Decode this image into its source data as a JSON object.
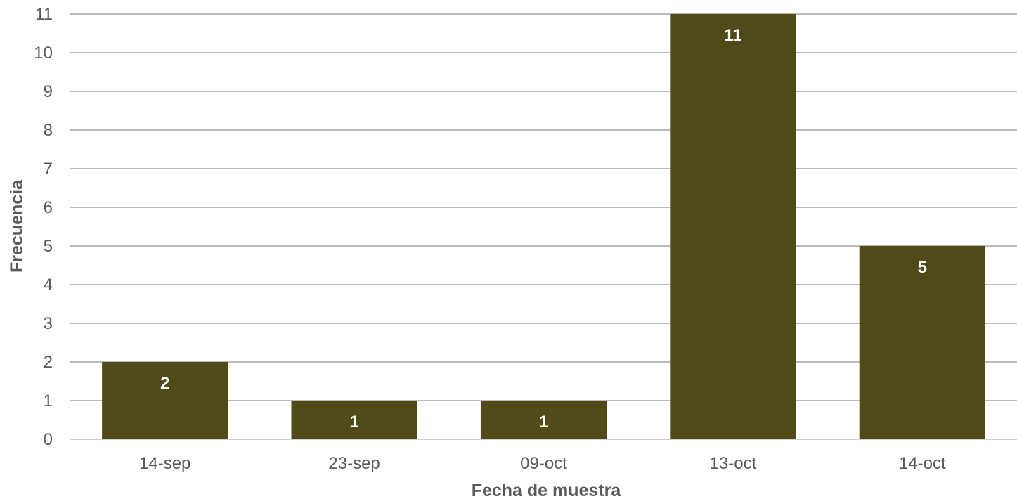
{
  "chart_data": {
    "type": "bar",
    "categories": [
      "14-sep",
      "23-sep",
      "09-oct",
      "13-oct",
      "14-oct"
    ],
    "values": [
      2,
      1,
      1,
      11,
      5
    ],
    "data_labels": [
      "2",
      "1",
      "1",
      "11",
      "5"
    ],
    "yticks": [
      "0",
      "1",
      "2",
      "3",
      "4",
      "5",
      "6",
      "7",
      "8",
      "9",
      "10",
      "11"
    ],
    "xlabel": "Fecha de muestra",
    "ylabel": "Frecuencia",
    "ylim": [
      0,
      11
    ],
    "grid": true,
    "legend": "none",
    "colors": {
      "bar": "#4f4a18",
      "grid": "#a6a6a6",
      "text": "#595959",
      "label": "#ffffff"
    }
  }
}
